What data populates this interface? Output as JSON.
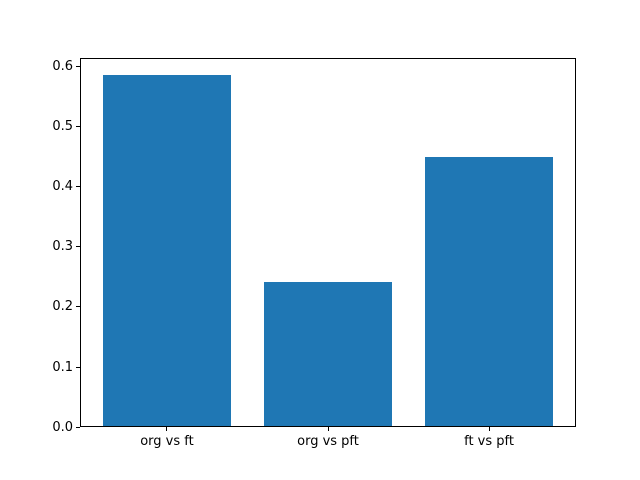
{
  "chart_data": {
    "type": "bar",
    "title": "",
    "xlabel": "",
    "ylabel": "",
    "categories": [
      "org vs ft",
      "org vs pft",
      "ft vs pft"
    ],
    "values": [
      0.585,
      0.242,
      0.449
    ],
    "ylim": [
      0,
      0.61425
    ],
    "xlim": [
      -0.54,
      2.54
    ],
    "bar_width": 0.8,
    "yticks": [
      {
        "value": 0.0,
        "label": "0.0"
      },
      {
        "value": 0.1,
        "label": "0.1"
      },
      {
        "value": 0.2,
        "label": "0.2"
      },
      {
        "value": 0.3,
        "label": "0.3"
      },
      {
        "value": 0.4,
        "label": "0.4"
      },
      {
        "value": 0.5,
        "label": "0.5"
      },
      {
        "value": 0.6,
        "label": "0.6"
      }
    ],
    "grid": false,
    "legend": null,
    "bar_color": "#1f77b4",
    "spine_color": "#000000",
    "background_color": "#ffffff"
  }
}
